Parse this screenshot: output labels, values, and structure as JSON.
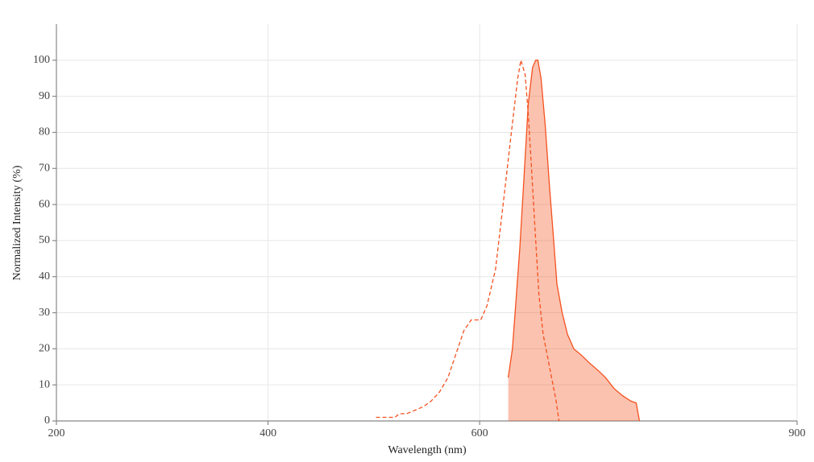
{
  "chart_data": {
    "type": "line",
    "xlabel": "Wavelength (nm)",
    "ylabel": "Normalized Intensity (%)",
    "xlim": [
      200,
      900
    ],
    "ylim": [
      0,
      110
    ],
    "xticks": [
      200,
      400,
      600,
      900
    ],
    "yticks": [
      0,
      10,
      20,
      30,
      40,
      50,
      60,
      70,
      80,
      90,
      100
    ],
    "grid": true,
    "series": [
      {
        "color": "#f4511e",
        "dashed": true,
        "fill": false,
        "x": [
          502,
          520,
          524,
          531,
          539,
          547,
          554,
          562,
          570,
          577,
          585,
          592,
          601,
          607,
          615,
          623,
          630,
          636,
          639,
          643,
          646,
          649,
          653,
          656,
          660,
          664,
          668,
          672,
          675
        ],
        "values": [
          1,
          1,
          2,
          2,
          3,
          4,
          5.5,
          8,
          12,
          18,
          25,
          28,
          28,
          32,
          42,
          62,
          80,
          95,
          100,
          96,
          85,
          70,
          50,
          35,
          24,
          18,
          12,
          6,
          0
        ]
      },
      {
        "color": "#f4511e",
        "dashed": false,
        "fill": true,
        "x": [
          627,
          631,
          634,
          638,
          642,
          646,
          650,
          653,
          655,
          658,
          662,
          666,
          670,
          673,
          678,
          683,
          689,
          697,
          704,
          712,
          719,
          727,
          735,
          743,
          748,
          751
        ],
        "values": [
          12,
          20,
          32,
          48,
          68,
          88,
          98,
          100,
          100,
          95,
          82,
          65,
          50,
          38,
          30,
          24,
          20,
          18,
          16,
          14,
          12,
          9,
          7,
          5.5,
          5,
          0
        ]
      }
    ]
  }
}
